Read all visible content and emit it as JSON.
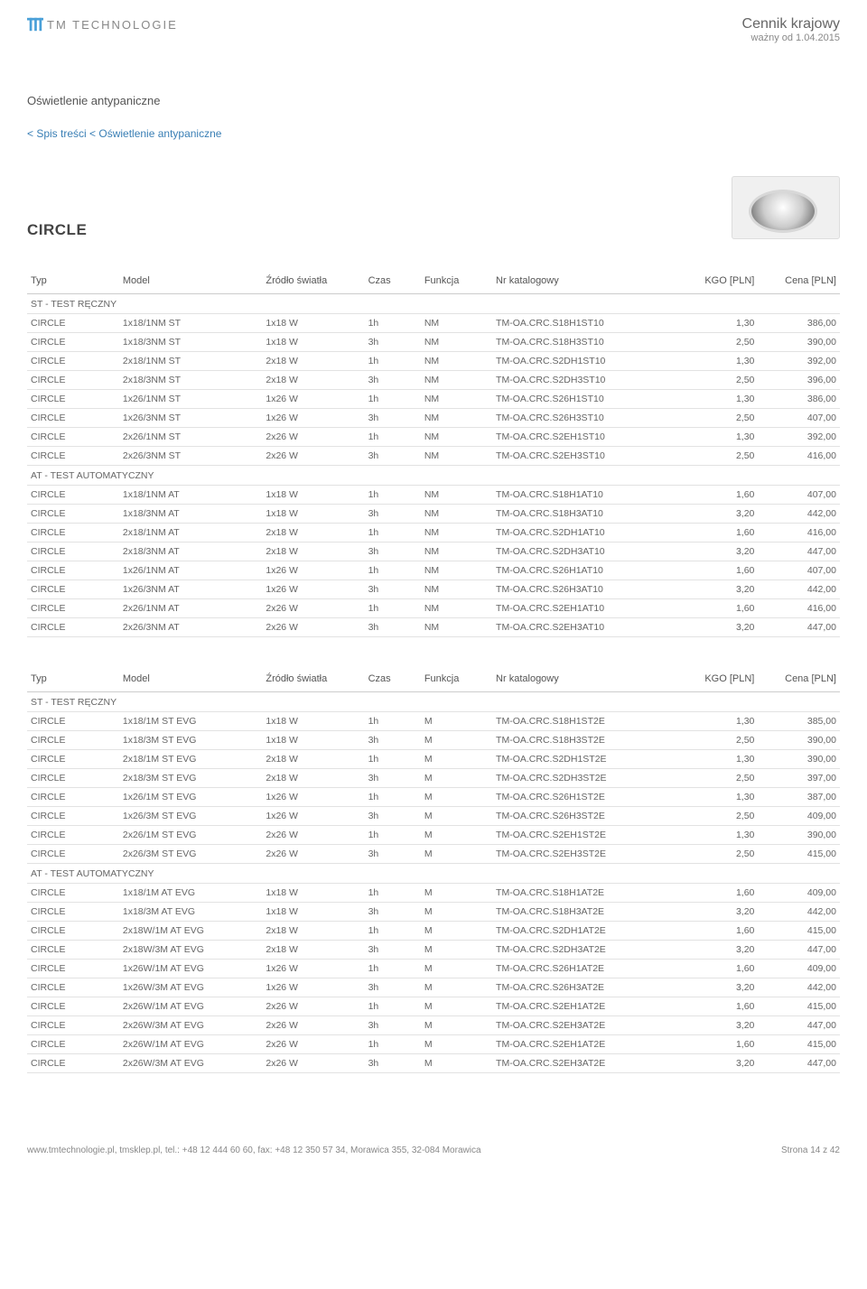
{
  "header": {
    "logo_text": "TM TECHNOLOGIE",
    "price_title": "Cennik krajowy",
    "price_sub": "ważny od 1.04.2015"
  },
  "section_title": "Oświetlenie antypaniczne",
  "breadcrumb": "< Spis treści < Oświetlenie antypaniczne",
  "product_name": "CIRCLE",
  "table_headers": {
    "typ": "Typ",
    "model": "Model",
    "src": "Źródło światła",
    "czas": "Czas",
    "funk": "Funkcja",
    "cat": "Nr katalogowy",
    "kgo": "KGO [PLN]",
    "cena": "Cena [PLN]"
  },
  "table1": {
    "sections": [
      {
        "label": "ST - TEST RĘCZNY",
        "rows": [
          [
            "CIRCLE",
            "1x18/1NM ST",
            "1x18 W",
            "1h",
            "NM",
            "TM-OA.CRC.S18H1ST10",
            "1,30",
            "386,00"
          ],
          [
            "CIRCLE",
            "1x18/3NM ST",
            "1x18 W",
            "3h",
            "NM",
            "TM-OA.CRC.S18H3ST10",
            "2,50",
            "390,00"
          ],
          [
            "CIRCLE",
            "2x18/1NM ST",
            "2x18 W",
            "1h",
            "NM",
            "TM-OA.CRC.S2DH1ST10",
            "1,30",
            "392,00"
          ],
          [
            "CIRCLE",
            "2x18/3NM ST",
            "2x18 W",
            "3h",
            "NM",
            "TM-OA.CRC.S2DH3ST10",
            "2,50",
            "396,00"
          ],
          [
            "CIRCLE",
            "1x26/1NM ST",
            "1x26 W",
            "1h",
            "NM",
            "TM-OA.CRC.S26H1ST10",
            "1,30",
            "386,00"
          ],
          [
            "CIRCLE",
            "1x26/3NM ST",
            "1x26 W",
            "3h",
            "NM",
            "TM-OA.CRC.S26H3ST10",
            "2,50",
            "407,00"
          ],
          [
            "CIRCLE",
            "2x26/1NM ST",
            "2x26 W",
            "1h",
            "NM",
            "TM-OA.CRC.S2EH1ST10",
            "1,30",
            "392,00"
          ],
          [
            "CIRCLE",
            "2x26/3NM ST",
            "2x26 W",
            "3h",
            "NM",
            "TM-OA.CRC.S2EH3ST10",
            "2,50",
            "416,00"
          ]
        ]
      },
      {
        "label": "AT - TEST AUTOMATYCZNY",
        "rows": [
          [
            "CIRCLE",
            "1x18/1NM  AT",
            "1x18 W",
            "1h",
            "NM",
            "TM-OA.CRC.S18H1AT10",
            "1,60",
            "407,00"
          ],
          [
            "CIRCLE",
            "1x18/3NM  AT",
            "1x18 W",
            "3h",
            "NM",
            "TM-OA.CRC.S18H3AT10",
            "3,20",
            "442,00"
          ],
          [
            "CIRCLE",
            "2x18/1NM AT",
            "2x18 W",
            "1h",
            "NM",
            "TM-OA.CRC.S2DH1AT10",
            "1,60",
            "416,00"
          ],
          [
            "CIRCLE",
            "2x18/3NM  AT",
            "2x18 W",
            "3h",
            "NM",
            "TM-OA.CRC.S2DH3AT10",
            "3,20",
            "447,00"
          ],
          [
            "CIRCLE",
            "1x26/1NM  AT",
            "1x26 W",
            "1h",
            "NM",
            "TM-OA.CRC.S26H1AT10",
            "1,60",
            "407,00"
          ],
          [
            "CIRCLE",
            "1x26/3NM  AT",
            "1x26 W",
            "3h",
            "NM",
            "TM-OA.CRC.S26H3AT10",
            "3,20",
            "442,00"
          ],
          [
            "CIRCLE",
            "2x26/1NM  AT",
            "2x26 W",
            "1h",
            "NM",
            "TM-OA.CRC.S2EH1AT10",
            "1,60",
            "416,00"
          ],
          [
            "CIRCLE",
            "2x26/3NM  AT",
            "2x26 W",
            "3h",
            "NM",
            "TM-OA.CRC.S2EH3AT10",
            "3,20",
            "447,00"
          ]
        ]
      }
    ]
  },
  "table2": {
    "sections": [
      {
        "label": "ST - TEST RĘCZNY",
        "rows": [
          [
            "CIRCLE",
            "1x18/1M  ST EVG",
            "1x18 W",
            "1h",
            "M",
            "TM-OA.CRC.S18H1ST2E",
            "1,30",
            "385,00"
          ],
          [
            "CIRCLE",
            "1x18/3M  ST EVG",
            "1x18 W",
            "3h",
            "M",
            "TM-OA.CRC.S18H3ST2E",
            "2,50",
            "390,00"
          ],
          [
            "CIRCLE",
            "2x18/1M ST EVG",
            "2x18 W",
            "1h",
            "M",
            "TM-OA.CRC.S2DH1ST2E",
            "1,30",
            "390,00"
          ],
          [
            "CIRCLE",
            "2x18/3M ST EVG",
            "2x18 W",
            "3h",
            "M",
            "TM-OA.CRC.S2DH3ST2E",
            "2,50",
            "397,00"
          ],
          [
            "CIRCLE",
            "1x26/1M  ST EVG",
            "1x26 W",
            "1h",
            "M",
            "TM-OA.CRC.S26H1ST2E",
            "1,30",
            "387,00"
          ],
          [
            "CIRCLE",
            "1x26/3M  ST EVG",
            "1x26 W",
            "3h",
            "M",
            "TM-OA.CRC.S26H3ST2E",
            "2,50",
            "409,00"
          ],
          [
            "CIRCLE",
            "2x26/1M  ST EVG",
            "2x26 W",
            "1h",
            "M",
            "TM-OA.CRC.S2EH1ST2E",
            "1,30",
            "390,00"
          ],
          [
            "CIRCLE",
            "2x26/3M  ST EVG",
            "2x26 W",
            "3h",
            "M",
            "TM-OA.CRC.S2EH3ST2E",
            "2,50",
            "415,00"
          ]
        ]
      },
      {
        "label": "AT - TEST AUTOMATYCZNY",
        "rows": [
          [
            "CIRCLE",
            "1x18/1M  AT EVG",
            "1x18 W",
            "1h",
            "M",
            "TM-OA.CRC.S18H1AT2E",
            "1,60",
            "409,00"
          ],
          [
            "CIRCLE",
            "1x18/3M  AT EVG",
            "1x18 W",
            "3h",
            "M",
            "TM-OA.CRC.S18H3AT2E",
            "3,20",
            "442,00"
          ],
          [
            "CIRCLE",
            "2x18W/1M AT EVG",
            "2x18 W",
            "1h",
            "M",
            "TM-OA.CRC.S2DH1AT2E",
            "1,60",
            "415,00"
          ],
          [
            "CIRCLE",
            "2x18W/3M AT EVG",
            "2x18 W",
            "3h",
            "M",
            "TM-OA.CRC.S2DH3AT2E",
            "3,20",
            "447,00"
          ],
          [
            "CIRCLE",
            "1x26W/1M  AT EVG",
            "1x26 W",
            "1h",
            "M",
            "TM-OA.CRC.S26H1AT2E",
            "1,60",
            "409,00"
          ],
          [
            "CIRCLE",
            "1x26W/3M  AT EVG",
            "1x26 W",
            "3h",
            "M",
            "TM-OA.CRC.S26H3AT2E",
            "3,20",
            "442,00"
          ],
          [
            "CIRCLE",
            "2x26W/1M  AT EVG",
            "2x26 W",
            "1h",
            "M",
            "TM-OA.CRC.S2EH1AT2E",
            "1,60",
            "415,00"
          ],
          [
            "CIRCLE",
            "2x26W/3M  AT EVG",
            "2x26 W",
            "3h",
            "M",
            "TM-OA.CRC.S2EH3AT2E",
            "3,20",
            "447,00"
          ],
          [
            "CIRCLE",
            "2x26W/1M  AT EVG",
            "2x26 W",
            "1h",
            "M",
            "TM-OA.CRC.S2EH1AT2E",
            "1,60",
            "415,00"
          ],
          [
            "CIRCLE",
            "2x26W/3M  AT EVG",
            "2x26 W",
            "3h",
            "M",
            "TM-OA.CRC.S2EH3AT2E",
            "3,20",
            "447,00"
          ]
        ]
      }
    ]
  },
  "footer": {
    "left": "www.tmtechnologie.pl, tmsklep.pl, tel.: +48 12 444 60 60, fax: +48 12 350 57 34, Morawica 355, 32-084 Morawica",
    "right": "Strona 14 z 42"
  }
}
